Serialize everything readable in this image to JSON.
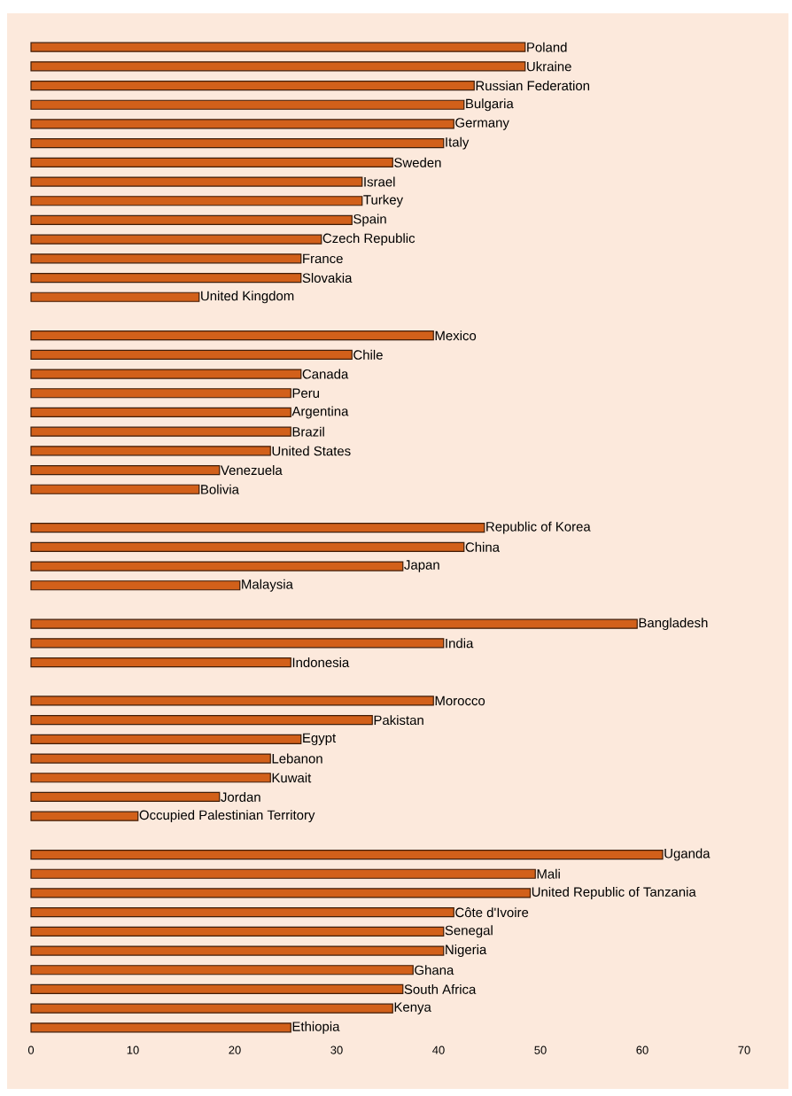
{
  "chart_data": {
    "type": "bar",
    "orientation": "horizontal",
    "categories": [
      "Poland",
      "Ukraine",
      "Russian Federation",
      "Bulgaria",
      "Germany",
      "Italy",
      "Sweden",
      "Israel",
      "Turkey",
      "Spain",
      "Czech Republic",
      "France",
      "Slovakia",
      "United Kingdom",
      null,
      "Mexico",
      "Chile",
      "Canada",
      "Peru",
      "Argentina",
      "Brazil",
      "United States",
      "Venezuela",
      "Bolivia",
      null,
      "Republic of Korea",
      "China",
      "Japan",
      "Malaysia",
      null,
      "Bangladesh",
      "India",
      "Indonesia",
      null,
      "Morocco",
      "Pakistan",
      "Egypt",
      "Lebanon",
      "Kuwait",
      "Jordan",
      "Occupied Palestinian Territory",
      null,
      "Uganda",
      "Mali",
      "United Republic of Tanzania",
      "Côte d'Ivoire",
      "Senegal",
      "Nigeria",
      "Ghana",
      "South Africa",
      "Kenya",
      "Ethiopia"
    ],
    "values": [
      48.5,
      48.5,
      43.5,
      42.5,
      41.5,
      40.5,
      35.5,
      32.5,
      32.5,
      31.5,
      28.5,
      26.5,
      26.5,
      16.5,
      null,
      39.5,
      31.5,
      26.5,
      25.5,
      25.5,
      25.5,
      23.5,
      18.5,
      16.5,
      null,
      44.5,
      42.5,
      36.5,
      20.5,
      null,
      59.5,
      40.5,
      25.5,
      null,
      39.5,
      33.5,
      26.5,
      23.5,
      23.5,
      18.5,
      10.5,
      null,
      62,
      49.5,
      49,
      41.5,
      40.5,
      40.5,
      37.5,
      36.5,
      35.5,
      25.5
    ],
    "color": "#d2601a",
    "xlim": [
      0,
      70
    ],
    "xticks": [
      0,
      10,
      20,
      30,
      40,
      50,
      60,
      70
    ]
  }
}
